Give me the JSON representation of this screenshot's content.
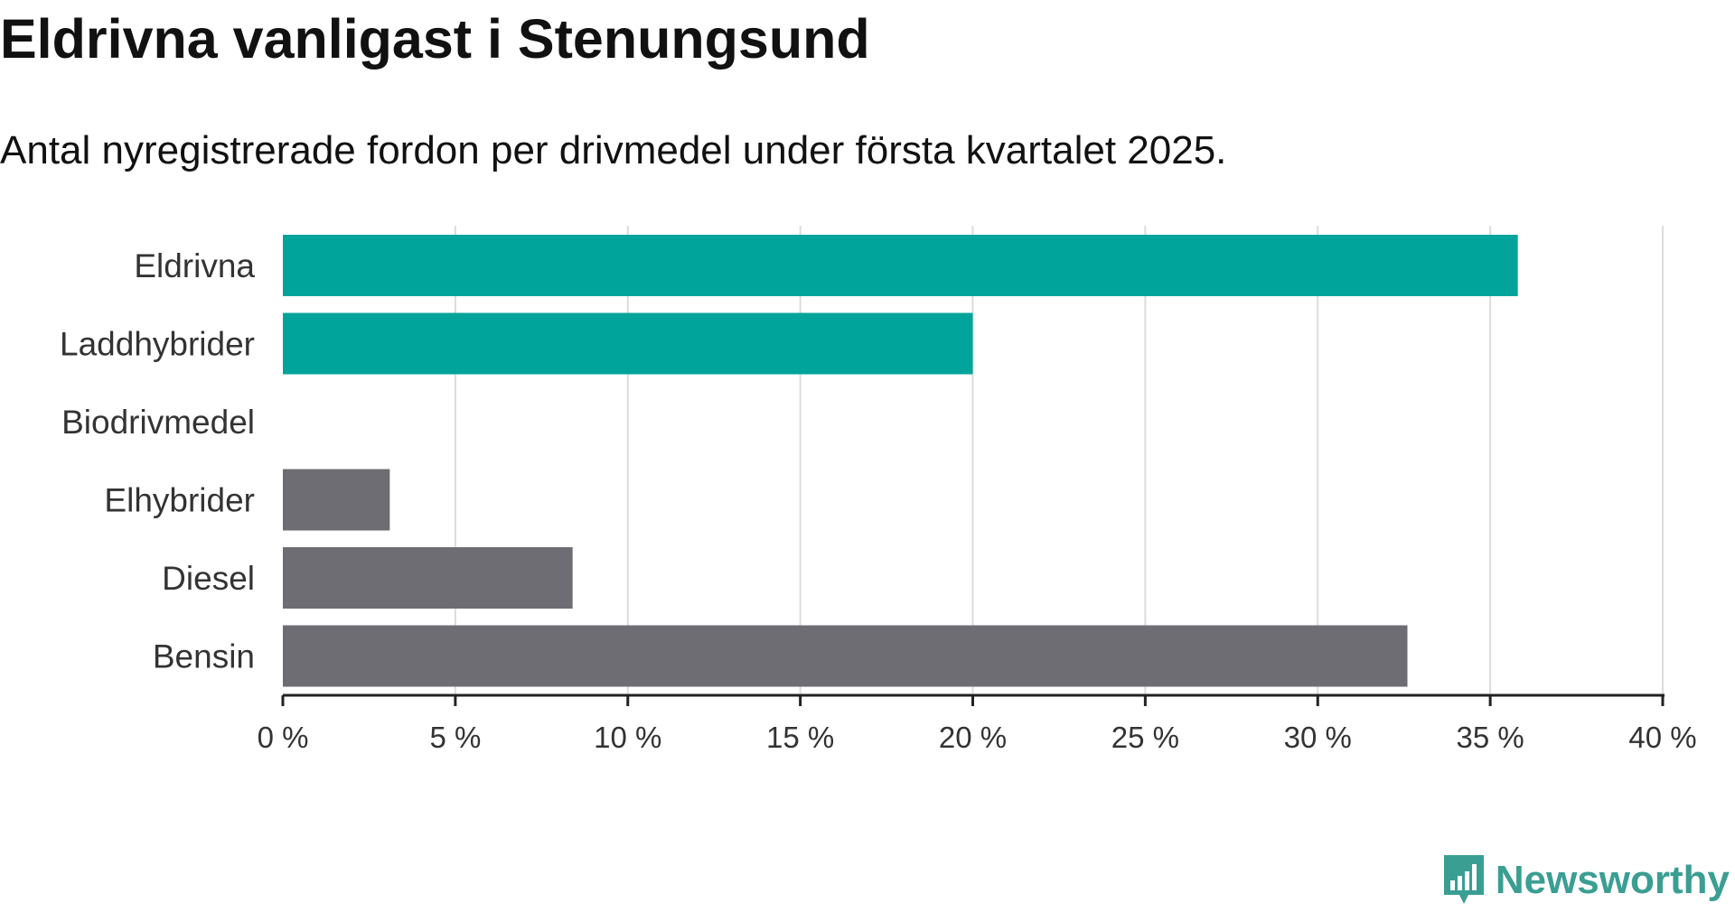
{
  "title": "Eldrivna vanligast i Stenungsund",
  "subtitle": "Antal nyregistrerade fordon per drivmedel under första kvartalet 2025.",
  "brand": {
    "name": "Newsworthy",
    "icon": "newsworthy-logo-icon",
    "color": "#3a9e93"
  },
  "colors": {
    "highlight": "#00a49a",
    "other": "#6e6d74",
    "grid": "#dcdcdc",
    "axis": "#222222"
  },
  "chart_data": {
    "type": "bar",
    "orientation": "horizontal",
    "categories": [
      "Eldrivna",
      "Laddhybrider",
      "Biodrivmedel",
      "Elhybrider",
      "Diesel",
      "Bensin"
    ],
    "values": [
      35.8,
      20.0,
      0.0,
      3.1,
      8.4,
      32.6
    ],
    "bar_colors": [
      "#00a49a",
      "#00a49a",
      "#6e6d74",
      "#6e6d74",
      "#6e6d74",
      "#6e6d74"
    ],
    "xlim": [
      0,
      40
    ],
    "xticks": [
      0,
      5,
      10,
      15,
      20,
      25,
      30,
      35,
      40
    ],
    "xtick_labels": [
      "0 %",
      "5 %",
      "10 %",
      "15 %",
      "20 %",
      "25 %",
      "30 %",
      "35 %",
      "40 %"
    ],
    "grid": "vertical"
  }
}
